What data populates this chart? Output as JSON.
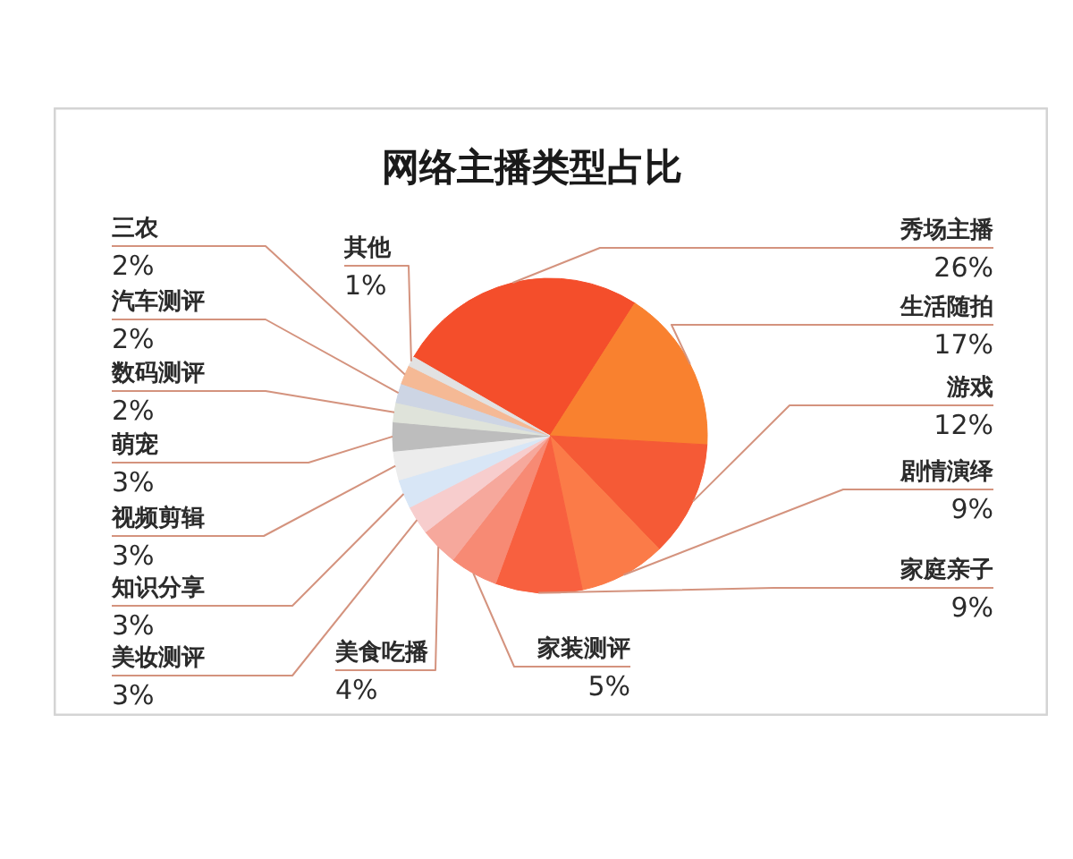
{
  "chart_data": {
    "type": "pie",
    "title": "网络主播类型占比",
    "categories": [
      "秀场主播",
      "生活随拍",
      "游戏",
      "剧情演绎",
      "家庭亲子",
      "家装测评",
      "美食吃播",
      "美妆测评",
      "知识分享",
      "视频剪辑",
      "萌宠",
      "数码测评",
      "汽车测评",
      "三农",
      "其他"
    ],
    "values": [
      26,
      17,
      12,
      9,
      9,
      5,
      4,
      3,
      3,
      3,
      3,
      2,
      2,
      2,
      1
    ],
    "value_labels": [
      "26%",
      "17%",
      "12%",
      "9%",
      "9%",
      "5%",
      "4%",
      "3%",
      "3%",
      "3%",
      "3%",
      "2%",
      "2%",
      "2%",
      "1%"
    ],
    "colors": [
      "#f44e2b",
      "#f9812f",
      "#f55a36",
      "#fb7b48",
      "#f8603f",
      "#f78a74",
      "#f6a89c",
      "#f7cdcd",
      "#d8e6f6",
      "#ececec",
      "#bdbdbd",
      "#dfe3da",
      "#cdd5e4",
      "#f5b995",
      "#e2e2e2"
    ]
  }
}
